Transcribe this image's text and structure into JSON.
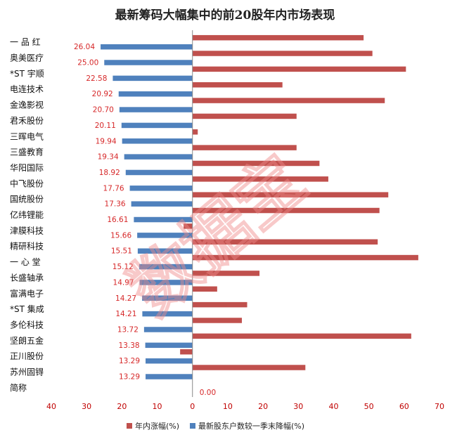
{
  "chart_data": {
    "type": "bar",
    "orientation": "horizontal",
    "title": "最新筹码大幅集中的前20股年内市场表现",
    "categories": [
      "一 品 红",
      "奥美医疗",
      "*ST 宇顺",
      "电连技术",
      "金逸影视",
      "君禾股份",
      "三晖电气",
      "三盛教育",
      "华阳国际",
      "中飞股份",
      "国统股份",
      "亿纬锂能",
      "津膜科技",
      "精研科技",
      "一 心 堂",
      "长盛轴承",
      "富满电子",
      "*ST 集成",
      "多伦科技",
      "坚朗五金",
      "正川股份",
      "苏州固锝",
      "简称"
    ],
    "series": [
      {
        "name": "年内涨幅(%)",
        "color": "#c0504d",
        "values": [
          48.5,
          51,
          60.5,
          25.5,
          54.5,
          29.5,
          1.5,
          29.5,
          36,
          38.5,
          55.5,
          53,
          -2.5,
          52.5,
          64,
          19,
          7,
          15.5,
          14,
          62,
          -3.5,
          32,
          null
        ]
      },
      {
        "name": "最新股东户数较一季末降幅(%)",
        "color": "#4f81bd",
        "values": [
          26.04,
          25.0,
          22.58,
          20.92,
          20.7,
          20.11,
          19.94,
          19.34,
          18.92,
          17.76,
          17.36,
          16.61,
          15.66,
          15.51,
          15.12,
          14.97,
          14.27,
          14.21,
          13.72,
          13.38,
          13.29,
          13.29,
          0.0
        ],
        "labels": [
          "26.04",
          "25.00",
          "22.58",
          "20.92",
          "20.70",
          "20.11",
          "19.94",
          "19.34",
          "18.92",
          "17.76",
          "17.36",
          "16.61",
          "15.66",
          "15.51",
          "15.12",
          "14.97",
          "14.27",
          "14.21",
          "13.72",
          "13.38",
          "13.29",
          "13.29",
          "0.00"
        ],
        "plotted_negative": true
      }
    ],
    "xlim": [
      -40,
      70
    ],
    "xticks": [
      -40,
      -30,
      -20,
      -10,
      0,
      10,
      20,
      30,
      40,
      50,
      60,
      70
    ],
    "xtick_labels": [
      "40",
      "30",
      "20",
      "10",
      "0",
      "10",
      "20",
      "30",
      "40",
      "50",
      "60",
      "70"
    ],
    "grid": false,
    "legend_position": "bottom"
  },
  "watermark": "数据宝"
}
